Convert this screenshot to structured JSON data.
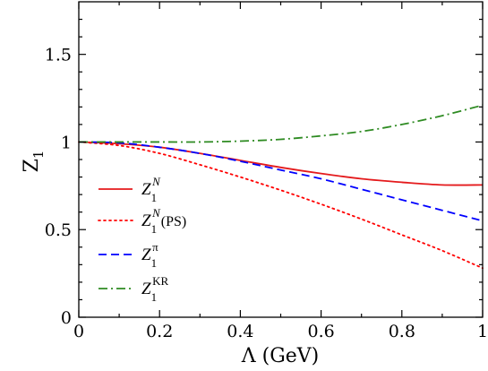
{
  "chart_data": {
    "type": "line",
    "x_label": "Λ (GeV)",
    "y_label": {
      "main": "Z",
      "sub": "1"
    },
    "xlim": [
      0,
      1
    ],
    "ylim": [
      0,
      1.8
    ],
    "x_ticks": [
      {
        "v": 0,
        "label": "0"
      },
      {
        "v": 0.2,
        "label": "0.2"
      },
      {
        "v": 0.4,
        "label": "0.4"
      },
      {
        "v": 0.6,
        "label": "0.6"
      },
      {
        "v": 0.8,
        "label": "0.8"
      },
      {
        "v": 1.0,
        "label": "1"
      }
    ],
    "y_ticks": [
      {
        "v": 0,
        "label": "0"
      },
      {
        "v": 0.5,
        "label": "0.5"
      },
      {
        "v": 1.0,
        "label": "1"
      },
      {
        "v": 1.5,
        "label": "1.5"
      }
    ],
    "legend_placement": "lower-left",
    "series": [
      {
        "name": {
          "main": "Z",
          "sub": "1",
          "sup": "N",
          "suffix": ""
        },
        "color": "#e41a1c",
        "style": "solid",
        "x": [
          0,
          0.1,
          0.2,
          0.3,
          0.4,
          0.5,
          0.6,
          0.7,
          0.8,
          0.9,
          1.0
        ],
        "y": [
          1.0,
          0.99,
          0.97,
          0.935,
          0.895,
          0.855,
          0.82,
          0.79,
          0.77,
          0.755,
          0.755
        ]
      },
      {
        "name": {
          "main": "Z",
          "sub": "1",
          "sup": "N",
          "suffix": "(PS)"
        },
        "color": "#ff0000",
        "style": "dotted",
        "x": [
          0,
          0.1,
          0.2,
          0.3,
          0.4,
          0.5,
          0.6,
          0.7,
          0.8,
          0.9,
          1.0
        ],
        "y": [
          1.0,
          0.98,
          0.935,
          0.87,
          0.8,
          0.725,
          0.645,
          0.56,
          0.47,
          0.38,
          0.28
        ]
      },
      {
        "name": {
          "main": "Z",
          "sub": "1",
          "sup": "π",
          "suffix": ""
        },
        "color": "#0000ff",
        "style": "dashed",
        "x": [
          0,
          0.1,
          0.2,
          0.3,
          0.4,
          0.5,
          0.6,
          0.7,
          0.8,
          0.9,
          1.0
        ],
        "y": [
          1.0,
          0.995,
          0.97,
          0.935,
          0.89,
          0.84,
          0.79,
          0.73,
          0.67,
          0.61,
          0.55
        ]
      },
      {
        "name": {
          "main": "Z",
          "sub": "1",
          "sup": "KR",
          "suffix": ""
        },
        "color": "#2e8b22",
        "style": "dashdot",
        "x": [
          0,
          0.1,
          0.2,
          0.3,
          0.4,
          0.5,
          0.6,
          0.7,
          0.8,
          0.9,
          1.0
        ],
        "y": [
          1.0,
          1.0,
          1.0,
          1.0,
          1.005,
          1.015,
          1.035,
          1.06,
          1.1,
          1.15,
          1.21
        ]
      }
    ]
  }
}
